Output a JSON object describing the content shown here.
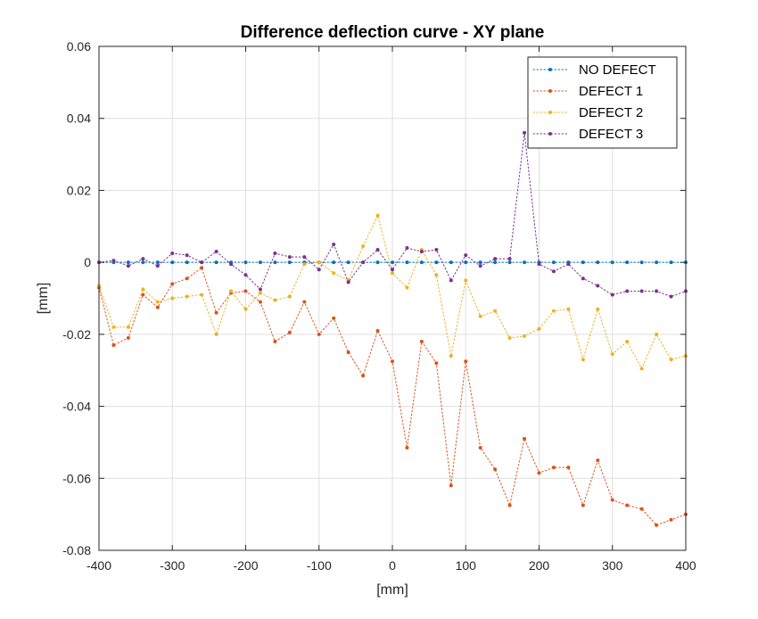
{
  "chart_data": {
    "type": "line",
    "title": "Difference deflection curve - XY plane",
    "xlabel": "[mm]",
    "ylabel": "[mm]",
    "xlim": [
      -400,
      400
    ],
    "ylim": [
      -0.08,
      0.06
    ],
    "xticks": [
      -400,
      -300,
      -200,
      -100,
      0,
      100,
      200,
      300,
      400
    ],
    "xtick_labels": [
      "-400",
      "-300",
      "-200",
      "-100",
      "0",
      "100",
      "200",
      "300",
      "400"
    ],
    "yticks": [
      -0.08,
      -0.06,
      -0.04,
      -0.02,
      0,
      0.02,
      0.04,
      0.06
    ],
    "ytick_labels": [
      "-0.08",
      "-0.06",
      "-0.04",
      "-0.02",
      "0",
      "0.02",
      "0.04",
      "0.06"
    ],
    "grid": true,
    "legend_position": "top-right",
    "x": [
      -400,
      -380,
      -360,
      -340,
      -320,
      -300,
      -280,
      -260,
      -240,
      -220,
      -200,
      -180,
      -160,
      -140,
      -120,
      -100,
      -80,
      -60,
      -40,
      -20,
      0,
      20,
      40,
      60,
      80,
      100,
      120,
      140,
      160,
      180,
      200,
      220,
      240,
      260,
      280,
      300,
      320,
      340,
      360,
      380,
      400
    ],
    "series": [
      {
        "name": "NO DEFECT",
        "color": "#0072BD",
        "values": [
          0,
          0,
          0,
          0,
          0,
          0,
          0,
          0,
          0,
          0,
          0,
          0,
          0,
          0,
          0,
          0,
          0,
          0,
          0,
          0,
          0,
          0,
          0,
          0,
          0,
          0,
          0,
          0,
          0,
          0,
          0,
          0,
          0,
          0,
          0,
          0,
          0,
          0,
          0,
          0,
          0
        ]
      },
      {
        "name": "DEFECT 1",
        "color": "#D95319",
        "values": [
          -0.007,
          -0.023,
          -0.021,
          -0.009,
          -0.0125,
          -0.006,
          -0.0045,
          -0.0015,
          -0.014,
          -0.0085,
          -0.008,
          -0.011,
          -0.022,
          -0.0195,
          -0.011,
          -0.02,
          -0.0155,
          -0.025,
          -0.0315,
          -0.019,
          -0.0275,
          -0.0515,
          -0.022,
          -0.028,
          -0.062,
          -0.0275,
          -0.0515,
          -0.0575,
          -0.0675,
          -0.049,
          -0.0585,
          -0.057,
          -0.057,
          -0.0675,
          -0.055,
          -0.066,
          -0.0675,
          -0.0685,
          -0.073,
          -0.0715,
          -0.07
        ]
      },
      {
        "name": "DEFECT 2",
        "color": "#EDB120",
        "values": [
          -0.0065,
          -0.018,
          -0.018,
          -0.0075,
          -0.011,
          -0.01,
          -0.0095,
          -0.009,
          -0.02,
          -0.008,
          -0.013,
          -0.0085,
          -0.0105,
          -0.0095,
          -0.0005,
          0.0,
          -0.003,
          -0.005,
          0.0045,
          0.013,
          -0.003,
          -0.007,
          0.0035,
          -0.0035,
          -0.026,
          -0.005,
          -0.015,
          -0.0135,
          -0.021,
          -0.0205,
          -0.0185,
          -0.0135,
          -0.013,
          -0.027,
          -0.013,
          -0.0255,
          -0.022,
          -0.0295,
          -0.02,
          -0.027,
          -0.026
        ]
      },
      {
        "name": "DEFECT 3",
        "color": "#7E2F8E",
        "values": [
          0.0,
          0.0005,
          -0.001,
          0.001,
          -0.001,
          0.0025,
          0.002,
          0.0,
          0.003,
          -0.0005,
          -0.0035,
          -0.0075,
          0.0025,
          0.0015,
          0.0015,
          -0.002,
          0.005,
          -0.0055,
          0.0,
          0.0035,
          -0.002,
          0.004,
          0.003,
          0.0035,
          -0.005,
          0.002,
          -0.001,
          0.001,
          0.001,
          0.036,
          -0.0005,
          -0.0025,
          -0.0005,
          -0.0045,
          -0.0065,
          -0.009,
          -0.008,
          -0.008,
          -0.008,
          -0.0095,
          -0.008
        ]
      }
    ]
  }
}
